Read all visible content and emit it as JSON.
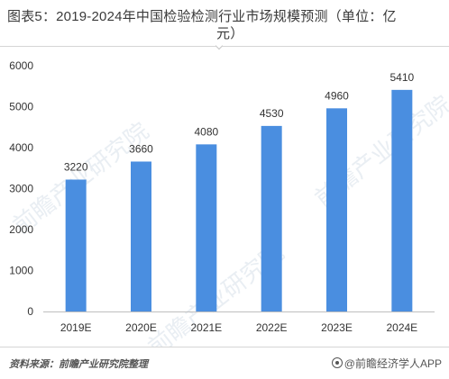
{
  "title": {
    "line1": "图表5：2019-2024年中国检验检测行业市场规模预测（单位：亿",
    "line2": "元）"
  },
  "source": "资料来源：前瞻产业研究院整理",
  "brand": "@前瞻经济学人APP",
  "watermark": "前瞻产业研究院",
  "colors": {
    "bar": "#4a8ee0",
    "axis": "#bfbfbf",
    "text": "#333333"
  },
  "chart_data": {
    "type": "bar",
    "categories": [
      "2019E",
      "2020E",
      "2021E",
      "2022E",
      "2023E",
      "2024E"
    ],
    "values": [
      3220,
      3660,
      4080,
      4530,
      4960,
      5410
    ],
    "title": "图表5：2019-2024年中国检验检测行业市场规模预测（单位：亿元）",
    "xlabel": "",
    "ylabel": "",
    "ylim": [
      0,
      6000
    ],
    "yticks": [
      0,
      1000,
      2000,
      3000,
      4000,
      5000,
      6000
    ],
    "grid": false,
    "legend": "none",
    "data_labels": true
  }
}
